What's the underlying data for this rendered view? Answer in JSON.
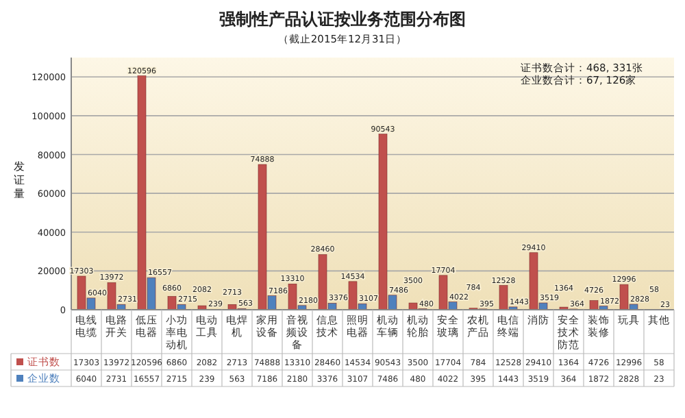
{
  "chart_data": {
    "type": "bar",
    "title": "强制性产品认证按业务范围分布图",
    "subtitle": "（截止2015年12月31日）",
    "ylabel": "发证量",
    "categories": [
      "电线电缆",
      "电路开关",
      "低压电器",
      "小功率电动机",
      "电动工具",
      "电焊机",
      "家用设备",
      "音视频设备",
      "信息技术",
      "照明电器",
      "机动车辆",
      "机动轮胎",
      "安全玻璃",
      "农机产品",
      "电信终端",
      "消防",
      "安全技术防范",
      "装饰装修",
      "玩具",
      "其他"
    ],
    "series": [
      {
        "name": "证书数",
        "color": "#c0504d",
        "values": [
          17303,
          13972,
          120596,
          6860,
          2082,
          2713,
          74888,
          13310,
          28460,
          14534,
          90543,
          3500,
          17704,
          784,
          12528,
          29410,
          1364,
          4726,
          12996,
          58
        ],
        "value_labels": [
          "17303",
          "13972",
          "120596",
          "6860",
          "2082",
          "2713",
          "74888",
          "13310",
          "28460",
          "14534",
          "90543",
          "3500",
          "17704",
          "784",
          "12528",
          "29410",
          "1364",
          "4726",
          "12996",
          "58"
        ]
      },
      {
        "name": "企业数",
        "color": "#4f81bd",
        "values": [
          6040,
          2731,
          16557,
          2715,
          239,
          563,
          7186,
          2180,
          3376,
          3107,
          7486,
          480,
          4022,
          395,
          1443,
          3519,
          364,
          1872,
          2828,
          23
        ],
        "value_labels": [
          "6040",
          "2731",
          "16557",
          "2715",
          "239",
          "563",
          "7186",
          "2180",
          "3376",
          "3107",
          "7486",
          "480",
          "4022",
          "395",
          "1443",
          "3519",
          "364",
          "1872",
          "2828",
          "23"
        ]
      }
    ],
    "ylim": [
      0,
      130000
    ],
    "yticks": [
      0,
      20000,
      40000,
      60000,
      80000,
      100000,
      120000
    ],
    "grid": "y",
    "data_labels": true,
    "legend": "bottom",
    "annotations": [
      "证书数合计：468, 331张",
      "企业数合计：67, 126家"
    ]
  }
}
